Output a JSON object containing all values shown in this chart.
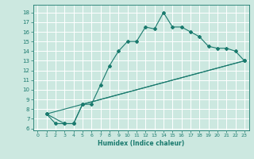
{
  "title": "",
  "xlabel": "Humidex (Indice chaleur)",
  "bg_color": "#cce8e0",
  "grid_color": "#ffffff",
  "line_color": "#1a7a6e",
  "xlim": [
    -0.5,
    23.5
  ],
  "ylim": [
    5.8,
    18.8
  ],
  "xticks": [
    0,
    1,
    2,
    3,
    4,
    5,
    6,
    7,
    8,
    9,
    10,
    11,
    12,
    13,
    14,
    15,
    16,
    17,
    18,
    19,
    20,
    21,
    22,
    23
  ],
  "yticks": [
    6,
    7,
    8,
    9,
    10,
    11,
    12,
    13,
    14,
    15,
    16,
    17,
    18
  ],
  "line1_x": [
    1,
    2,
    3,
    4,
    5,
    6,
    7,
    8,
    9,
    10,
    11,
    12,
    13,
    14,
    15,
    16,
    17,
    18,
    19,
    20,
    21,
    22,
    23
  ],
  "line1_y": [
    7.5,
    6.5,
    6.5,
    6.5,
    8.5,
    8.5,
    10.5,
    12.5,
    14.0,
    15.0,
    15.0,
    16.5,
    16.3,
    18.0,
    16.5,
    16.5,
    16.0,
    15.5,
    14.5,
    14.3,
    14.3,
    14.0,
    13.0
  ],
  "line2_x": [
    1,
    3,
    4,
    5,
    23
  ],
  "line2_y": [
    7.5,
    6.5,
    6.5,
    8.5,
    13.0
  ],
  "line3_x": [
    1,
    23
  ],
  "line3_y": [
    7.5,
    13.0
  ]
}
